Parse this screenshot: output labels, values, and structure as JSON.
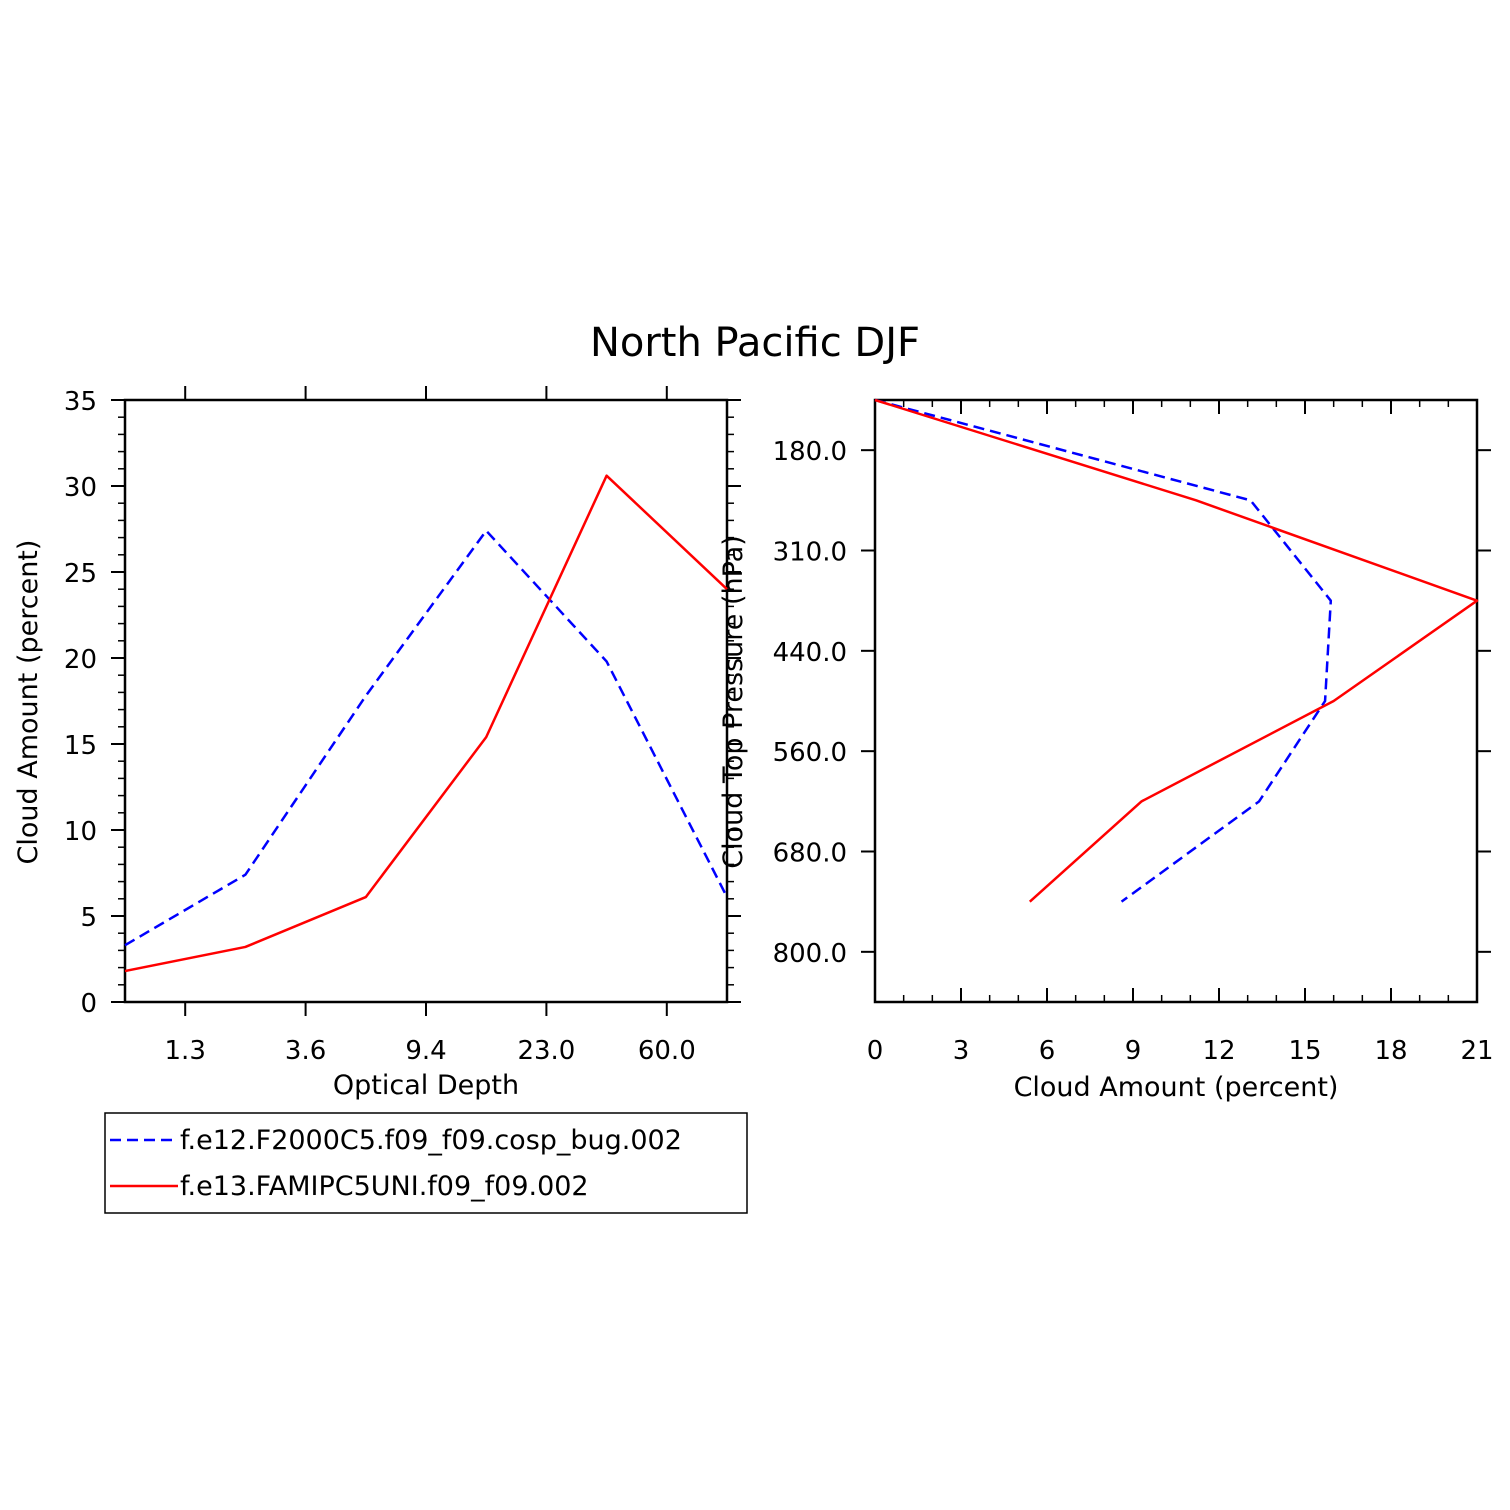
{
  "chart_data": [
    {
      "type": "line",
      "title": "North Pacific DJF",
      "xlabel": "Optical Depth",
      "ylabel": "Cloud Amount (percent)",
      "x_tick_labels": [
        "1.3",
        "3.6",
        "9.4",
        "23.0",
        "60.0"
      ],
      "y_ticks": [
        0,
        5,
        10,
        15,
        20,
        25,
        30,
        35
      ],
      "ylim": [
        0,
        35
      ],
      "x": [
        0,
        1,
        2,
        3,
        4,
        5
      ],
      "series": [
        {
          "name": "f.e12.F2000C5.f09_f09.cosp_bug.002",
          "color": "#0000ff",
          "style": "dashed",
          "values": [
            3.3,
            7.4,
            17.8,
            27.4,
            19.8,
            6.1
          ]
        },
        {
          "name": "f.e13.FAMIPC5UNI.f09_f09.002",
          "color": "#ff0000",
          "style": "solid",
          "values": [
            1.8,
            3.2,
            6.1,
            15.4,
            30.6,
            24.0
          ]
        }
      ]
    },
    {
      "type": "line",
      "xlabel": "Cloud Amount (percent)",
      "ylabel": "Cloud Top Pressure (hPa)",
      "x_ticks": [
        0,
        3,
        6,
        9,
        12,
        15,
        18,
        21
      ],
      "xlim": [
        0,
        21
      ],
      "y_tick_labels": [
        "180.0",
        "310.0",
        "440.0",
        "560.0",
        "680.0",
        "800.0"
      ],
      "y_levels": [
        0,
        1,
        2,
        3,
        4,
        5,
        6
      ],
      "series": [
        {
          "name": "f.e12.F2000C5.f09_f09.cosp_bug.002",
          "color": "#0000ff",
          "style": "dashed",
          "values": [
            0.0,
            13.1,
            15.9,
            15.7,
            13.4,
            8.6
          ]
        },
        {
          "name": "f.e13.FAMIPC5UNI.f09_f09.002",
          "color": "#ff0000",
          "style": "solid",
          "values": [
            0.0,
            11.2,
            21.0,
            16.0,
            9.3,
            5.4
          ]
        }
      ]
    }
  ],
  "legend": {
    "items": [
      {
        "label": "f.e12.F2000C5.f09_f09.cosp_bug.002",
        "color": "#0000ff",
        "style": "dashed"
      },
      {
        "label": "f.e13.FAMIPC5UNI.f09_f09.002",
        "color": "#ff0000",
        "style": "solid"
      }
    ]
  }
}
